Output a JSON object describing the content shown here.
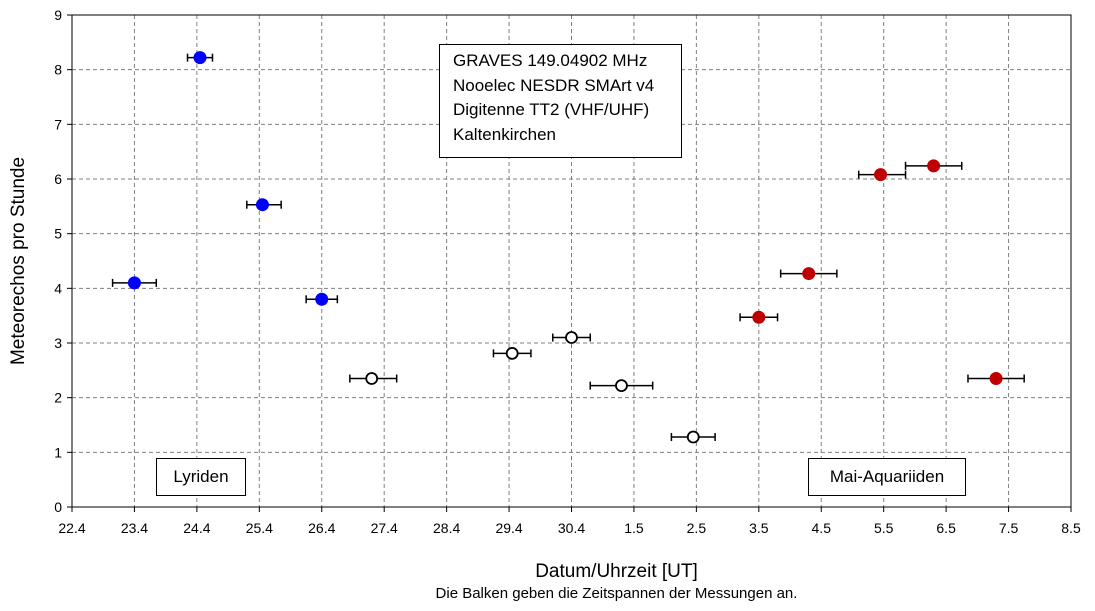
{
  "chart_data": {
    "type": "scatter",
    "xlabel": "Datum/Uhrzeit  [UT]",
    "ylabel": "Meteorechos pro Stunde",
    "note": "Die Balken geben die Zeitspannen der Messungen an.",
    "x_tick_labels": [
      "22.4",
      "23.4",
      "24.4",
      "25.4",
      "26.4",
      "27.4",
      "28.4",
      "29.4",
      "30.4",
      "1.5",
      "2.5",
      "3.5",
      "4.5",
      "5.5",
      "6.5",
      "7.5",
      "8.5"
    ],
    "xlim": [
      0,
      16
    ],
    "ylim": [
      0,
      9
    ],
    "y_ticks": [
      0,
      1,
      2,
      3,
      4,
      5,
      6,
      7,
      8,
      9
    ],
    "grid": true,
    "info_lines": [
      "GRAVES 149.04902 MHz",
      "Nooelec NESDR SMArt v4",
      "Digitenne TT2 (VHF/UHF)",
      "Kaltenkirchen"
    ],
    "annotations": [
      "Lyriden",
      "Mai-Aquariiden"
    ],
    "colors": {
      "lyriden": "#0000ff",
      "aquariiden": "#c00000",
      "other": "#ffffff"
    },
    "series": [
      {
        "name": "Lyriden",
        "style": "filled-blue",
        "points": [
          {
            "x": 1.0,
            "y": 4.1,
            "xmin": 0.65,
            "xmax": 1.35
          },
          {
            "x": 2.05,
            "y": 8.22,
            "xmin": 1.85,
            "xmax": 2.25
          },
          {
            "x": 3.05,
            "y": 5.53,
            "xmin": 2.8,
            "xmax": 3.35
          },
          {
            "x": 4.0,
            "y": 3.8,
            "xmin": 3.75,
            "xmax": 4.25
          }
        ]
      },
      {
        "name": "Mai-Aquariiden",
        "style": "filled-red",
        "points": [
          {
            "x": 11.0,
            "y": 3.47,
            "xmin": 10.7,
            "xmax": 11.3
          },
          {
            "x": 11.8,
            "y": 4.27,
            "xmin": 11.35,
            "xmax": 12.25
          },
          {
            "x": 12.95,
            "y": 6.08,
            "xmin": 12.6,
            "xmax": 13.35
          },
          {
            "x": 13.8,
            "y": 6.24,
            "xmin": 13.35,
            "xmax": 14.25
          },
          {
            "x": 14.8,
            "y": 2.35,
            "xmin": 14.35,
            "xmax": 15.25
          }
        ]
      },
      {
        "name": "",
        "style": "open-circle",
        "points": [
          {
            "x": 4.8,
            "y": 2.35,
            "xmin": 4.45,
            "xmax": 5.2
          },
          {
            "x": 7.05,
            "y": 2.81,
            "xmin": 6.75,
            "xmax": 7.35
          },
          {
            "x": 8.0,
            "y": 3.1,
            "xmin": 7.7,
            "xmax": 8.3
          },
          {
            "x": 8.8,
            "y": 2.22,
            "xmin": 8.3,
            "xmax": 9.3
          },
          {
            "x": 9.95,
            "y": 1.28,
            "xmin": 9.6,
            "xmax": 10.3
          }
        ]
      }
    ]
  }
}
